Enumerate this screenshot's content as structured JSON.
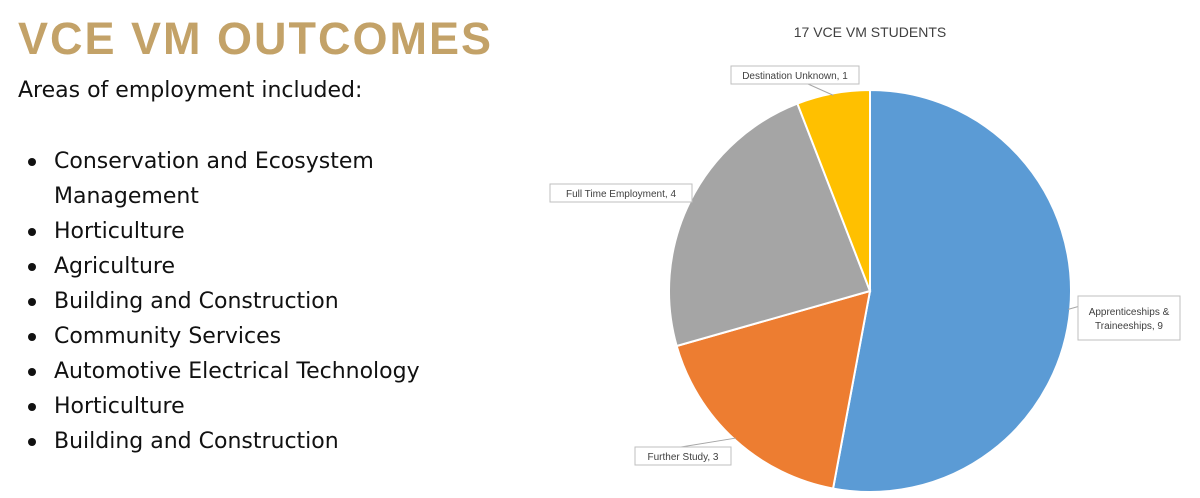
{
  "slide": {
    "title": "VCE VM OUTCOMES",
    "subtitle": "Areas of employment included:",
    "employment_areas": [
      [
        "Conservation and Ecosystem",
        "Management"
      ],
      [
        "Horticulture"
      ],
      [
        "Agriculture"
      ],
      [
        "Building and Construction"
      ],
      [
        "Community Services"
      ],
      [
        "Automotive Electrical Technology"
      ],
      [
        "Horticulture"
      ],
      [
        "Building and Construction"
      ]
    ],
    "title_color": "#c3a268"
  },
  "chart_data": {
    "type": "pie",
    "title": "17 VCE VM STUDENTS",
    "slices": [
      {
        "label": "Apprenticeships & Traineeships",
        "value": 9,
        "color": "#5b9bd5",
        "data_label": [
          "Apprenticeships &",
          "Traineeships, 9"
        ]
      },
      {
        "label": "Further Study",
        "value": 3,
        "color": "#ed7d31",
        "data_label": [
          "Further Study, 3"
        ]
      },
      {
        "label": "Full Time Employment",
        "value": 4,
        "color": "#a5a5a5",
        "data_label": [
          "Full Time Employment, 4"
        ]
      },
      {
        "label": "Destination Unknown",
        "value": 1,
        "color": "#ffc000",
        "data_label": [
          "Destination Unknown, 1"
        ]
      }
    ]
  }
}
